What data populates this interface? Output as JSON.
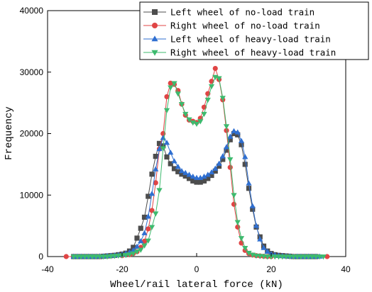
{
  "chart_data": {
    "type": "line",
    "title": "",
    "xlabel": "Wheel/rail lateral force (kN)",
    "ylabel": "Frequency",
    "xlim": [
      -40,
      40
    ],
    "ylim": [
      0,
      40000
    ],
    "xticks": [
      -40,
      -20,
      0,
      20,
      40
    ],
    "yticks": [
      0,
      10000,
      20000,
      30000,
      40000
    ],
    "grid": false,
    "legend_position": "top-right",
    "series": [
      {
        "name": "Left wheel of no-load train",
        "color": "#4d4d4d",
        "marker": "square",
        "x": [
          -33,
          -32,
          -31,
          -30,
          -29,
          -28,
          -27,
          -26,
          -25,
          -24,
          -23,
          -22,
          -21,
          -20,
          -19,
          -18,
          -17,
          -16,
          -15,
          -14,
          -13,
          -12,
          -11,
          -10,
          -9,
          -8,
          -7,
          -6,
          -5,
          -4,
          -3,
          -2,
          -1,
          0,
          1,
          2,
          3,
          4,
          5,
          6,
          7,
          8,
          9,
          10,
          11,
          12,
          13,
          14,
          15,
          16,
          17,
          18,
          19,
          20,
          21,
          22,
          23,
          24,
          25,
          26,
          27,
          28,
          29,
          30,
          31,
          32
        ],
        "y": [
          0,
          0,
          0,
          0,
          0,
          0,
          0,
          0,
          50,
          100,
          150,
          200,
          300,
          400,
          550,
          900,
          1500,
          3000,
          4600,
          6400,
          9800,
          13400,
          16300,
          18400,
          18000,
          16200,
          15100,
          14300,
          13800,
          13400,
          13100,
          12700,
          12300,
          12100,
          12100,
          12300,
          12700,
          13200,
          13900,
          14700,
          15800,
          17300,
          19000,
          20000,
          19800,
          18200,
          15000,
          11100,
          7700,
          4800,
          3200,
          1700,
          900,
          500,
          300,
          200,
          150,
          100,
          50,
          0,
          0,
          0,
          0,
          0,
          0,
          0
        ]
      },
      {
        "name": "Right wheel of no-load train",
        "color": "#e04545",
        "marker": "circle",
        "x": [
          -35,
          -26,
          -20,
          -18,
          -17,
          -16,
          -15,
          -14,
          -13,
          -12,
          -11,
          -10,
          -9,
          -8,
          -7,
          -6,
          -5,
          -4,
          -3,
          -2,
          -1,
          0,
          1,
          2,
          3,
          4,
          5,
          6,
          7,
          8,
          9,
          10,
          11,
          12,
          13,
          14,
          15,
          16,
          17,
          18,
          19,
          20,
          26,
          35
        ],
        "y": [
          0,
          0,
          150,
          300,
          500,
          800,
          1500,
          2500,
          4500,
          7500,
          12000,
          17500,
          20000,
          26000,
          28200,
          28000,
          27000,
          24800,
          23000,
          22200,
          22000,
          21800,
          22500,
          24300,
          26500,
          28500,
          30600,
          28800,
          25500,
          20500,
          14500,
          8500,
          4800,
          2200,
          1000,
          500,
          250,
          150,
          100,
          50,
          0,
          0,
          0,
          0
        ]
      },
      {
        "name": "Left wheel of heavy-load train",
        "color": "#2f6fd1",
        "marker": "triangle-up",
        "x": [
          -33,
          -32,
          -31,
          -30,
          -29,
          -28,
          -27,
          -26,
          -25,
          -24,
          -23,
          -22,
          -21,
          -20,
          -19,
          -18,
          -17,
          -16,
          -15,
          -14,
          -13,
          -12,
          -11,
          -10,
          -9,
          -8,
          -7,
          -6,
          -5,
          -4,
          -3,
          -2,
          -1,
          0,
          1,
          2,
          3,
          4,
          5,
          6,
          7,
          8,
          9,
          10,
          11,
          12,
          13,
          14,
          15,
          16,
          17,
          18,
          19,
          20,
          21,
          22,
          23,
          24,
          25,
          26,
          27,
          28,
          29,
          30,
          31,
          32,
          33
        ],
        "y": [
          0,
          0,
          0,
          0,
          0,
          0,
          0,
          50,
          50,
          100,
          150,
          200,
          250,
          350,
          500,
          700,
          1000,
          1600,
          2500,
          3800,
          6500,
          10200,
          14200,
          17500,
          19300,
          18500,
          16900,
          15500,
          14600,
          13900,
          13600,
          13300,
          13000,
          12800,
          12800,
          13000,
          13300,
          13700,
          14300,
          15100,
          16300,
          17800,
          19500,
          20400,
          20200,
          18800,
          16200,
          11900,
          8200,
          5000,
          2800,
          1400,
          800,
          400,
          250,
          150,
          100,
          50,
          50,
          0,
          0,
          0,
          0,
          0,
          0,
          0,
          0
        ]
      },
      {
        "name": "Right wheel of heavy-load train",
        "color": "#3dba6e",
        "marker": "triangle-down",
        "x": [
          -33,
          -32,
          -31,
          -30,
          -29,
          -28,
          -27,
          -26,
          -25,
          -24,
          -23,
          -22,
          -21,
          -20,
          -19,
          -18,
          -17,
          -16,
          -15,
          -14,
          -13,
          -12,
          -11,
          -10,
          -9,
          -8,
          -7,
          -6,
          -5,
          -4,
          -3,
          -2,
          -1,
          0,
          1,
          2,
          3,
          4,
          5,
          6,
          7,
          8,
          9,
          10,
          11,
          12,
          13,
          14,
          15,
          16,
          17,
          18,
          19,
          20,
          21,
          22,
          23,
          24,
          25,
          26,
          27,
          28,
          29,
          30,
          31,
          32,
          33,
          34
        ],
        "y": [
          0,
          0,
          0,
          0,
          0,
          0,
          0,
          0,
          0,
          0,
          50,
          100,
          150,
          200,
          250,
          350,
          500,
          800,
          1100,
          1800,
          2600,
          4800,
          7000,
          10800,
          17600,
          23800,
          27500,
          28200,
          26500,
          24800,
          23200,
          22300,
          21800,
          21600,
          22000,
          23200,
          25500,
          27700,
          29200,
          29000,
          25800,
          21200,
          15800,
          10000,
          5600,
          3000,
          1400,
          600,
          300,
          150,
          100,
          50,
          0,
          0,
          0,
          0,
          0,
          0,
          0,
          0,
          0,
          0,
          0,
          0,
          0,
          0,
          0,
          0
        ]
      }
    ]
  }
}
